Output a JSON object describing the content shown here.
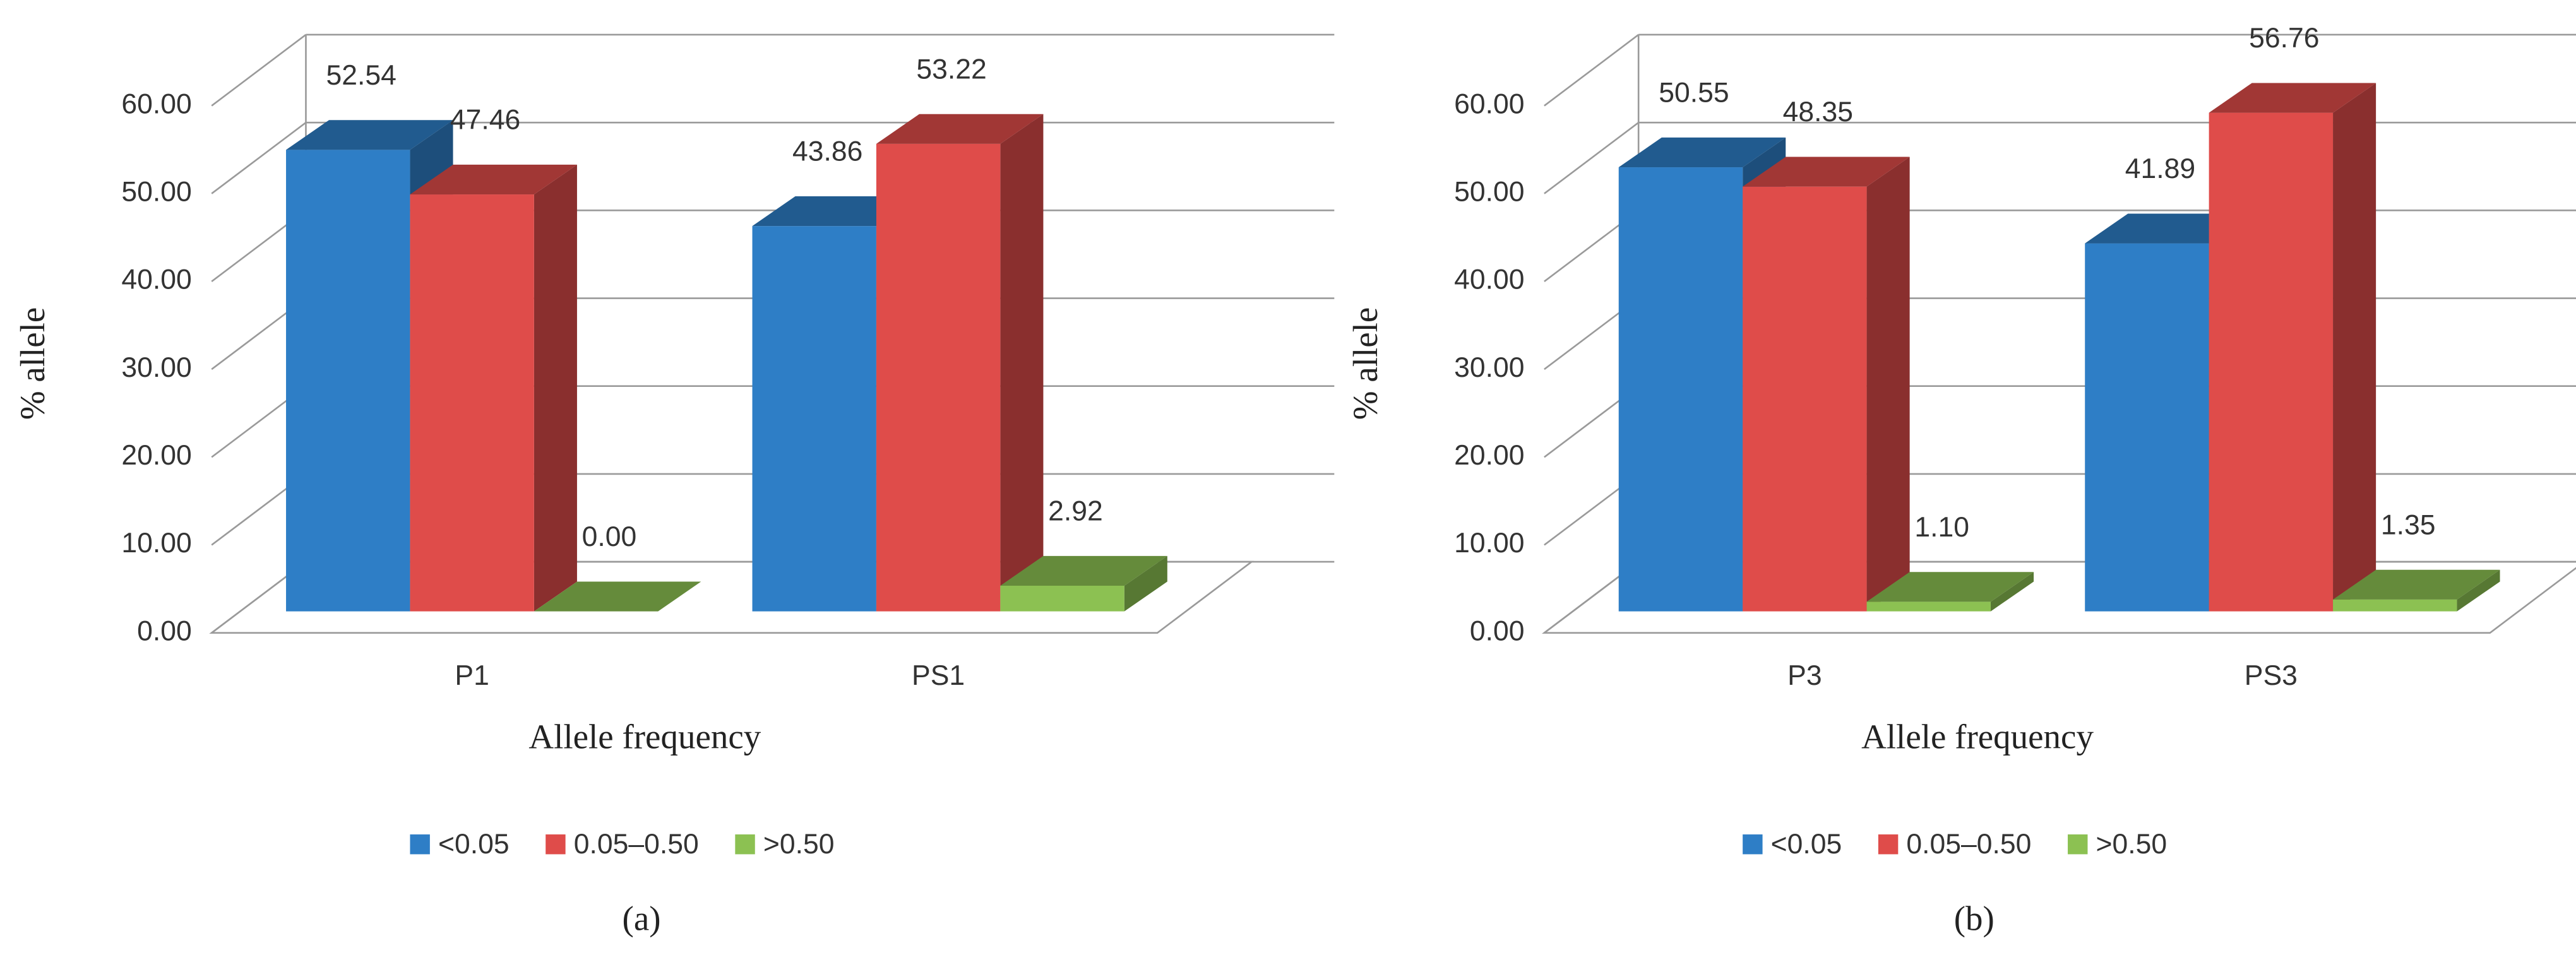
{
  "chart_data": [
    {
      "type": "bar3d",
      "panel_label": "(a)",
      "ylabel": "% allele",
      "xlabel": "Allele frequency",
      "categories": [
        "P1",
        "PS1"
      ],
      "series": [
        {
          "name": "<0.05",
          "color": "#2e7ec6",
          "values": [
            52.54,
            43.86
          ],
          "value_labels": [
            "52.54",
            "43.86"
          ]
        },
        {
          "name": "0.05–0.50",
          "color": "#df4c4a",
          "values": [
            47.46,
            53.22
          ],
          "value_labels": [
            "47.46",
            "53.22"
          ]
        },
        {
          "name": ">0.50",
          "color": "#8cc152",
          "values": [
            0.0,
            2.92
          ],
          "value_labels": [
            "0.00",
            "2.92"
          ]
        }
      ],
      "ylim": [
        0,
        60
      ],
      "yticks": [
        {
          "value": 0,
          "label": "0.00"
        },
        {
          "value": 10,
          "label": "10.00"
        },
        {
          "value": 20,
          "label": "20.00"
        },
        {
          "value": 30,
          "label": "30.00"
        },
        {
          "value": 40,
          "label": "40.00"
        },
        {
          "value": 50,
          "label": "50.00"
        },
        {
          "value": 60,
          "label": "60.00"
        }
      ],
      "grid": true,
      "legend": "bottom"
    },
    {
      "type": "bar3d",
      "panel_label": "(b)",
      "ylabel": "% allele",
      "xlabel": "Allele frequency",
      "categories": [
        "P3",
        "PS3"
      ],
      "series": [
        {
          "name": "<0.05",
          "color": "#2e7ec6",
          "values": [
            50.55,
            41.89
          ],
          "value_labels": [
            "50.55",
            "41.89"
          ]
        },
        {
          "name": "0.05–0.50",
          "color": "#df4c4a",
          "values": [
            48.35,
            56.76
          ],
          "value_labels": [
            "48.35",
            "56.76"
          ]
        },
        {
          "name": ">0.50",
          "color": "#8cc152",
          "values": [
            1.1,
            1.35
          ],
          "value_labels": [
            "1.10",
            "1.35"
          ]
        }
      ],
      "ylim": [
        0,
        60
      ],
      "yticks": [
        {
          "value": 0,
          "label": "0.00"
        },
        {
          "value": 10,
          "label": "10.00"
        },
        {
          "value": 20,
          "label": "20.00"
        },
        {
          "value": 30,
          "label": "30.00"
        },
        {
          "value": 40,
          "label": "40.00"
        },
        {
          "value": 50,
          "label": "50.00"
        },
        {
          "value": 60,
          "label": "60.00"
        }
      ],
      "grid": true,
      "legend": "bottom"
    }
  ]
}
